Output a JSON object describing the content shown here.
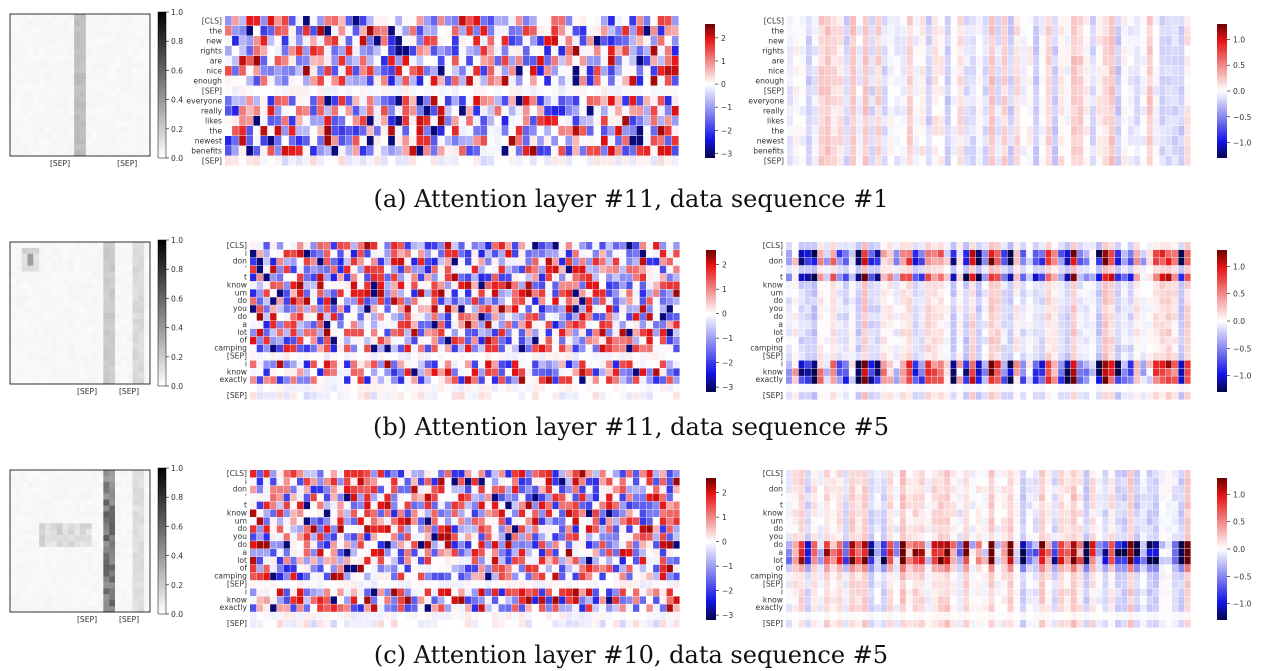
{
  "figure": {
    "captions": [
      "(a) Attention layer #11, data sequence #1",
      "(b) Attention layer #11, data sequence #5",
      "(c) Attention layer #10, data sequence #5"
    ]
  },
  "colors": {
    "neg_dark": "#05054d",
    "neg": "#1414e6",
    "zero": "#ffffff",
    "pos": "#e61414",
    "pos_dark": "#6e0000",
    "gray_high": "#000000",
    "gray_low": "#ffffff"
  },
  "chart_data": [
    {
      "type": "heatmap",
      "panel": "a",
      "name": "attention-map",
      "colorscale": "grays",
      "xlabels": [
        "[SEP]",
        "[SEP]"
      ],
      "colorbar_ticks": [
        "0.0",
        "0.2",
        "0.4",
        "0.6",
        "0.8",
        "1.0"
      ],
      "vmin": 0,
      "vmax": 1,
      "grid": false,
      "note_values": "faint uniform attention with one vertical band at the middle [SEP] column (~0.25)"
    },
    {
      "type": "heatmap",
      "panel": "a",
      "name": "gradient-map",
      "colorscale": "bwr",
      "ylabels": [
        "[CLS]",
        "the",
        "new",
        "rights",
        "are",
        "nice",
        "enough",
        "[SEP]",
        "everyone",
        "really",
        "likes",
        "the",
        "newest",
        "benefits",
        "[SEP]"
      ],
      "columns": 64,
      "colorbar_ticks": [
        "2",
        "1",
        "0",
        "−1",
        "−2",
        "−3"
      ],
      "vmin": -3.2,
      "vmax": 2.6,
      "grid": false
    },
    {
      "type": "heatmap",
      "panel": "a",
      "name": "attribution-map",
      "colorscale": "bwr",
      "ylabels": [
        "[CLS]",
        "the",
        "new",
        "rights",
        "are",
        "nice",
        "enough",
        "[SEP]",
        "everyone",
        "really",
        "likes",
        "the",
        "newest",
        "benefits",
        "[SEP]"
      ],
      "columns": 64,
      "colorbar_ticks": [
        "1.0",
        "0.5",
        "0.0",
        "−0.5",
        "−1.0"
      ],
      "vmin": -1.3,
      "vmax": 1.3,
      "grid": false
    },
    {
      "type": "heatmap",
      "panel": "b",
      "name": "attention-map",
      "colorscale": "grays",
      "xlabels": [
        "[SEP]",
        "[SEP]"
      ],
      "colorbar_ticks": [
        "0.0",
        "0.2",
        "0.4",
        "0.6",
        "0.8",
        "1.0"
      ],
      "vmin": 0,
      "vmax": 1,
      "grid": false
    },
    {
      "type": "heatmap",
      "panel": "b",
      "name": "gradient-map",
      "colorscale": "bwr",
      "ylabels": [
        "[CLS]",
        "i",
        "don",
        "'",
        "t",
        "know",
        "um",
        "do",
        "you",
        "do",
        "a",
        "lot",
        "of",
        "camping",
        "[SEP]",
        "i",
        "know",
        "exactly",
        "",
        "[SEP]"
      ],
      "columns": 64,
      "colorbar_ticks": [
        "2",
        "1",
        "0",
        "−1",
        "−2",
        "−3"
      ],
      "vmin": -3.2,
      "vmax": 2.6,
      "grid": false
    },
    {
      "type": "heatmap",
      "panel": "b",
      "name": "attribution-map",
      "colorscale": "bwr",
      "ylabels": [
        "[CLS]",
        "i",
        "don",
        "'",
        "t",
        "know",
        "um",
        "do",
        "you",
        "do",
        "a",
        "lot",
        "of",
        "camping",
        "[SEP]",
        "i",
        "know",
        "exactly",
        "",
        "[SEP]"
      ],
      "columns": 64,
      "colorbar_ticks": [
        "1.0",
        "0.5",
        "0.0",
        "−0.5",
        "−1.0"
      ],
      "vmin": -1.3,
      "vmax": 1.3,
      "grid": false
    },
    {
      "type": "heatmap",
      "panel": "c",
      "name": "attention-map",
      "colorscale": "grays",
      "xlabels": [
        "[SEP]",
        "[SEP]"
      ],
      "colorbar_ticks": [
        "0.0",
        "0.2",
        "0.4",
        "0.6",
        "0.8",
        "1.0"
      ],
      "vmin": 0,
      "vmax": 1,
      "grid": false
    },
    {
      "type": "heatmap",
      "panel": "c",
      "name": "gradient-map",
      "colorscale": "bwr",
      "ylabels": [
        "[CLS]",
        "i",
        "don",
        "'",
        "t",
        "know",
        "um",
        "do",
        "you",
        "do",
        "a",
        "lot",
        "of",
        "camping",
        "[SEP]",
        "i",
        "know",
        "exactly",
        "",
        "[SEP]"
      ],
      "columns": 64,
      "colorbar_ticks": [
        "2",
        "1",
        "0",
        "−1",
        "−2",
        "−3"
      ],
      "vmin": -3.2,
      "vmax": 2.6,
      "grid": false
    },
    {
      "type": "heatmap",
      "panel": "c",
      "name": "attribution-map",
      "colorscale": "bwr",
      "ylabels": [
        "[CLS]",
        "i",
        "don",
        "'",
        "t",
        "know",
        "um",
        "do",
        "you",
        "do",
        "a",
        "lot",
        "of",
        "camping",
        "[SEP]",
        "i",
        "know",
        "exactly",
        "",
        "[SEP]"
      ],
      "columns": 64,
      "colorbar_ticks": [
        "1.0",
        "0.5",
        "0.0",
        "−0.5",
        "−1.0"
      ],
      "vmin": -1.3,
      "vmax": 1.3,
      "grid": false
    }
  ]
}
